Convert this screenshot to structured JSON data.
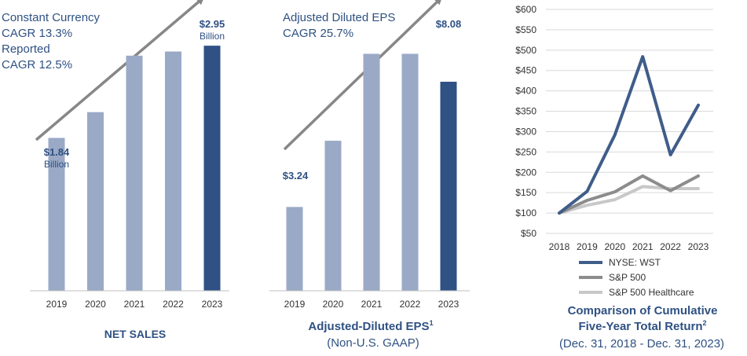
{
  "colors": {
    "bar_light": "#9aa9c6",
    "bar_dark": "#2f5183",
    "arrow": "#878787",
    "text_blue": "#2f5183",
    "wst": "#3f5d89",
    "sp500": "#8c8c8c",
    "sp500_health": "#c8c8c8",
    "grid": "#d9d9d9"
  },
  "chart_data": [
    {
      "type": "bar",
      "title": "NET SALES",
      "categories": [
        "2019",
        "2020",
        "2021",
        "2022",
        "2023"
      ],
      "values": [
        1.84,
        2.15,
        2.83,
        2.88,
        2.95
      ],
      "ylim": [
        0,
        3.5
      ],
      "highlight_index": 4,
      "annotations": {
        "growth_line1": "Constant Currency",
        "growth_line2": "CAGR 13.3%",
        "growth_line3": "Reported",
        "growth_line4": "CAGR 12.5%",
        "start_value": "$1.84",
        "start_unit": "Billion",
        "end_value": "$2.95",
        "end_unit": "Billion"
      }
    },
    {
      "type": "bar",
      "title": "Adjusted-Diluted EPS",
      "title_sup": "1",
      "subtitle": "(Non-U.S. GAAP)",
      "categories": [
        "2019",
        "2020",
        "2021",
        "2022",
        "2023"
      ],
      "values": [
        3.24,
        5.8,
        9.16,
        9.16,
        8.08
      ],
      "ylim": [
        0,
        11.24
      ],
      "highlight_index": 4,
      "annotations": {
        "growth_line1": "Adjusted Diluted EPS",
        "growth_line2": "CAGR 25.7%",
        "start_value": "$3.24",
        "end_value": "$8.08"
      }
    },
    {
      "type": "line",
      "title_line1": "Comparison of Cumulative",
      "title_line2": "Five-Year Total Return",
      "title_sup": "2",
      "subtitle": "(Dec. 31, 2018 - Dec. 31, 2023)",
      "x": [
        "2018",
        "2019",
        "2020",
        "2021",
        "2022",
        "2023"
      ],
      "ylim": [
        50,
        600
      ],
      "yticks": [
        50,
        100,
        150,
        200,
        250,
        300,
        350,
        400,
        450,
        500,
        550,
        600
      ],
      "ytick_labels": [
        "$50",
        "$100",
        "$150",
        "$200",
        "$250",
        "$300",
        "$350",
        "$400",
        "$450",
        "$500",
        "$550",
        "$600"
      ],
      "series": [
        {
          "name": "NYSE: WST",
          "values": [
            100,
            153,
            292,
            484,
            243,
            365
          ]
        },
        {
          "name": "S&P 500",
          "values": [
            100,
            131,
            152,
            191,
            155,
            191
          ]
        },
        {
          "name": "S&P 500 Healthcare",
          "values": [
            100,
            119,
            133,
            165,
            160,
            160
          ]
        }
      ]
    }
  ]
}
